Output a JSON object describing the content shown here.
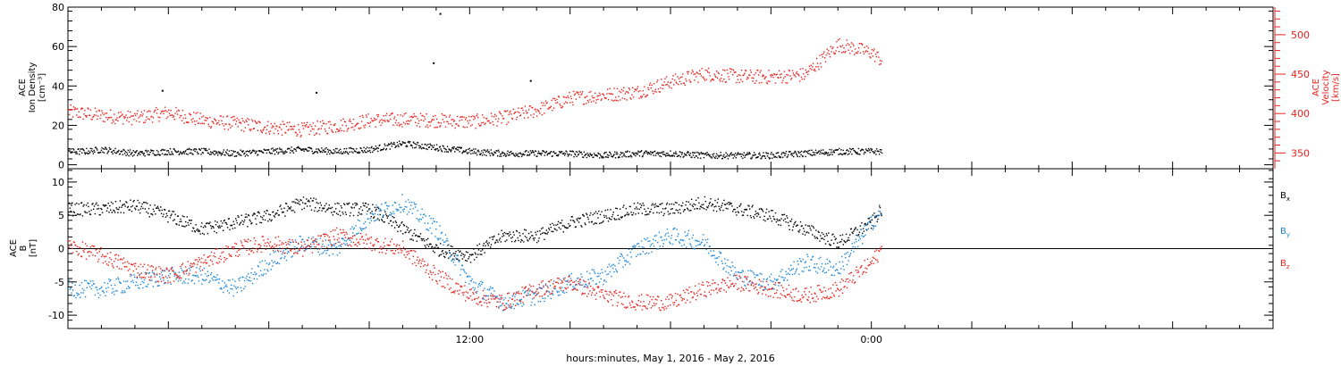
{
  "xlabel": "hours:minutes, May  1, 2016 - May  2, 2016",
  "colors": {
    "black": "#000000",
    "red": "#e8231f",
    "blue": "#1e88d6"
  },
  "chart_data": [
    {
      "type": "scatter",
      "panel": "top",
      "ylabel_left": [
        "ACE",
        "Ion Density",
        "[cm⁻³]"
      ],
      "ylabel_right": [
        "ACE",
        "Velocity",
        "[km/s]"
      ],
      "ylim_left": [
        -2,
        80
      ],
      "ylim_right": [
        330,
        535
      ],
      "yticks_left": [
        0,
        20,
        40,
        60,
        80
      ],
      "yticks_right": [
        350,
        400,
        450,
        500
      ],
      "x_hours_range": [
        0,
        36
      ],
      "series": [
        {
          "name": "Ion Density",
          "axis": "left",
          "color": "black",
          "points": [
            [
              0.0,
              7
            ],
            [
              0.5,
              7
            ],
            [
              1.0,
              8
            ],
            [
              2.0,
              6
            ],
            [
              3.0,
              7
            ],
            [
              4.0,
              7
            ],
            [
              5.0,
              6
            ],
            [
              6.0,
              7
            ],
            [
              7.0,
              8
            ],
            [
              8.0,
              7
            ],
            [
              9.0,
              8
            ],
            [
              10.0,
              11
            ],
            [
              11.0,
              9
            ],
            [
              12.0,
              7
            ],
            [
              13.0,
              6
            ],
            [
              14.0,
              6
            ],
            [
              15.0,
              6
            ],
            [
              16.0,
              5
            ],
            [
              17.0,
              6
            ],
            [
              18.0,
              6
            ],
            [
              19.0,
              5
            ],
            [
              20.0,
              5
            ],
            [
              21.0,
              5
            ],
            [
              22.0,
              6
            ],
            [
              23.0,
              7
            ],
            [
              24.0,
              7
            ],
            [
              24.3,
              7
            ]
          ],
          "outliers": [
            [
              11.1,
              77
            ],
            [
              10.9,
              52
            ],
            [
              7.4,
              37
            ],
            [
              2.8,
              38
            ],
            [
              13.8,
              43
            ]
          ]
        },
        {
          "name": "Velocity",
          "axis": "right",
          "color": "red",
          "points": [
            [
              0.0,
              403
            ],
            [
              1.0,
              398
            ],
            [
              2.0,
              395
            ],
            [
              3.0,
              402
            ],
            [
              4.0,
              392
            ],
            [
              5.0,
              388
            ],
            [
              6.0,
              383
            ],
            [
              7.0,
              380
            ],
            [
              8.0,
              385
            ],
            [
              9.0,
              392
            ],
            [
              10.0,
              393
            ],
            [
              11.0,
              392
            ],
            [
              12.0,
              390
            ],
            [
              13.0,
              395
            ],
            [
              14.0,
              405
            ],
            [
              15.0,
              420
            ],
            [
              16.0,
              424
            ],
            [
              17.0,
              428
            ],
            [
              18.0,
              441
            ],
            [
              19.0,
              451
            ],
            [
              20.0,
              448
            ],
            [
              21.0,
              447
            ],
            [
              22.0,
              450
            ],
            [
              23.0,
              488
            ],
            [
              24.0,
              478
            ],
            [
              24.3,
              468
            ]
          ]
        }
      ]
    },
    {
      "type": "scatter",
      "panel": "bottom",
      "ylabel_left": [
        "ACE",
        "B",
        "[nT]"
      ],
      "ylim": [
        -12,
        12
      ],
      "yticks": [
        -10,
        -5,
        0,
        5,
        10
      ],
      "x_hours_range": [
        0,
        36
      ],
      "xtick_labels": [
        {
          "hour": 12,
          "label": "12:00"
        },
        {
          "hour": 24,
          "label": "0:00"
        }
      ],
      "series": [
        {
          "name": "Bx",
          "color": "black",
          "points": [
            [
              0.0,
              6
            ],
            [
              1.0,
              6
            ],
            [
              2.0,
              6.5
            ],
            [
              3.0,
              5
            ],
            [
              4.0,
              3
            ],
            [
              5.0,
              4
            ],
            [
              6.0,
              5
            ],
            [
              7.0,
              7
            ],
            [
              8.0,
              6
            ],
            [
              9.0,
              6
            ],
            [
              10.0,
              3
            ],
            [
              11.0,
              0
            ],
            [
              12.0,
              -1
            ],
            [
              13.0,
              2
            ],
            [
              14.0,
              2
            ],
            [
              15.0,
              4
            ],
            [
              16.0,
              5
            ],
            [
              17.0,
              6
            ],
            [
              18.0,
              6
            ],
            [
              19.0,
              7
            ],
            [
              20.0,
              6
            ],
            [
              21.0,
              5
            ],
            [
              22.0,
              3
            ],
            [
              23.0,
              1
            ],
            [
              24.0,
              4
            ],
            [
              24.3,
              6
            ]
          ]
        },
        {
          "name": "By",
          "color": "blue",
          "points": [
            [
              0.0,
              -6
            ],
            [
              1.0,
              -6
            ],
            [
              2.0,
              -5
            ],
            [
              3.0,
              -4
            ],
            [
              4.0,
              -4
            ],
            [
              5.0,
              -6
            ],
            [
              6.0,
              -2
            ],
            [
              7.0,
              1
            ],
            [
              8.0,
              0
            ],
            [
              9.0,
              5
            ],
            [
              10.0,
              7
            ],
            [
              11.0,
              3
            ],
            [
              12.0,
              -5
            ],
            [
              13.0,
              -8
            ],
            [
              14.0,
              -7
            ],
            [
              15.0,
              -5
            ],
            [
              16.0,
              -4
            ],
            [
              17.0,
              0
            ],
            [
              18.0,
              2
            ],
            [
              19.0,
              1
            ],
            [
              20.0,
              -4
            ],
            [
              21.0,
              -5
            ],
            [
              22.0,
              -2
            ],
            [
              23.0,
              -3
            ],
            [
              24.0,
              4
            ],
            [
              24.3,
              6
            ]
          ]
        },
        {
          "name": "Bz",
          "color": "red",
          "points": [
            [
              0.0,
              0.5
            ],
            [
              1.0,
              -1
            ],
            [
              2.0,
              -3
            ],
            [
              3.0,
              -4
            ],
            [
              4.0,
              -2
            ],
            [
              5.0,
              0
            ],
            [
              6.0,
              1
            ],
            [
              7.0,
              0
            ],
            [
              8.0,
              2
            ],
            [
              9.0,
              1
            ],
            [
              10.0,
              0
            ],
            [
              11.0,
              -4
            ],
            [
              12.0,
              -7
            ],
            [
              13.0,
              -8
            ],
            [
              14.0,
              -6
            ],
            [
              15.0,
              -5
            ],
            [
              16.0,
              -7
            ],
            [
              17.0,
              -8
            ],
            [
              18.0,
              -8
            ],
            [
              19.0,
              -6
            ],
            [
              20.0,
              -5
            ],
            [
              21.0,
              -6
            ],
            [
              22.0,
              -7
            ],
            [
              23.0,
              -6
            ],
            [
              24.0,
              -2
            ],
            [
              24.3,
              0
            ]
          ]
        }
      ],
      "legend": [
        {
          "base": "B",
          "sub": "x",
          "color": "black"
        },
        {
          "base": "B",
          "sub": "y",
          "color": "blue"
        },
        {
          "base": "B",
          "sub": "z",
          "color": "red"
        }
      ]
    }
  ]
}
